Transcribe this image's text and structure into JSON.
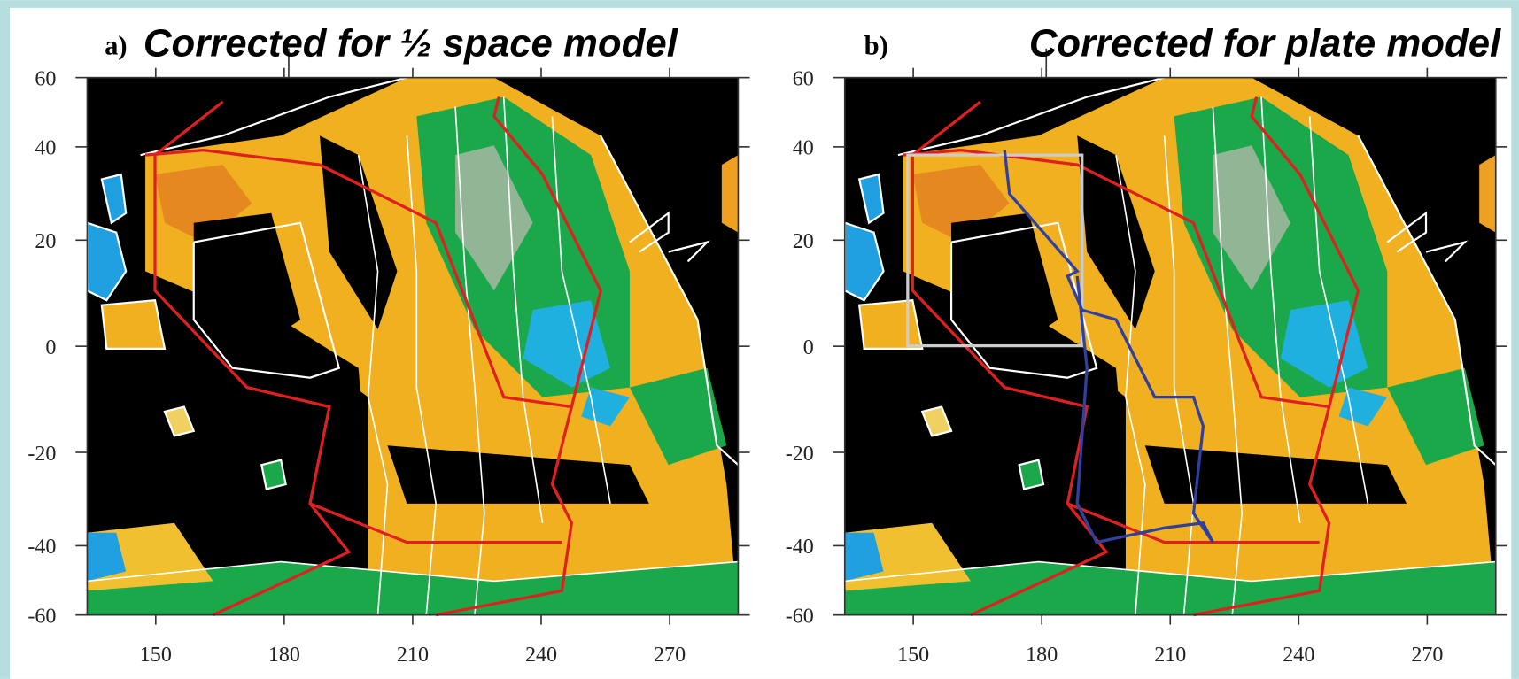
{
  "panels": [
    {
      "label": "a)",
      "title": "Corrected for ½ space model",
      "xlim": [
        134,
        286
      ],
      "ylim": [
        -60,
        60
      ],
      "xticks": [
        150,
        180,
        210,
        240,
        270
      ],
      "yticks": [
        60,
        40,
        20,
        0,
        -20,
        -40,
        -60
      ],
      "y_scale": "sine",
      "plate_outline": false
    },
    {
      "label": "b)",
      "title": "Corrected for plate model",
      "xlim": [
        134,
        286
      ],
      "ylim": [
        -60,
        60
      ],
      "xticks": [
        150,
        180,
        210,
        240,
        270
      ],
      "yticks": [
        60,
        40,
        20,
        0,
        -20,
        -40,
        -60
      ],
      "y_scale": "sine",
      "plate_outline": true
    }
  ]
}
